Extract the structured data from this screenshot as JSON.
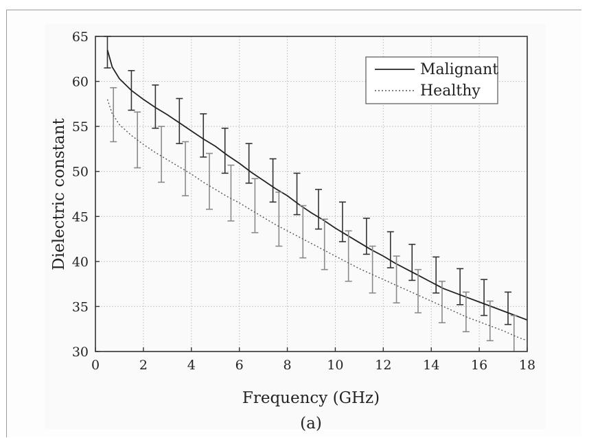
{
  "chart_data": {
    "type": "line",
    "xlabel": "Frequency (GHz)",
    "ylabel": "Dielectric constant",
    "caption": "(a)",
    "xlim": [
      0,
      18
    ],
    "ylim": [
      30,
      65
    ],
    "xticks": [
      0,
      2,
      4,
      6,
      8,
      10,
      12,
      14,
      16,
      18
    ],
    "yticks": [
      30,
      35,
      40,
      45,
      50,
      55,
      60,
      65
    ],
    "grid": true,
    "legend_position": "top-right",
    "series": [
      {
        "name": "Malignant",
        "style": "solid",
        "color": "#222222",
        "x": [
          0.5,
          0.7,
          1.0,
          1.5,
          2.0,
          2.5,
          3.0,
          3.5,
          4.0,
          4.5,
          5.0,
          5.5,
          6.0,
          6.5,
          7.0,
          7.5,
          8.0,
          8.5,
          9.0,
          9.5,
          10.0,
          10.5,
          11.0,
          11.5,
          12.0,
          12.5,
          13.0,
          13.5,
          14.0,
          14.5,
          15.0,
          15.5,
          16.0,
          16.5,
          17.0,
          17.5,
          18.0
        ],
        "y": [
          63.5,
          61.6,
          60.3,
          59.0,
          58.0,
          57.1,
          56.3,
          55.4,
          54.5,
          53.6,
          52.8,
          51.8,
          50.9,
          49.9,
          49.0,
          48.1,
          47.3,
          46.3,
          45.4,
          44.6,
          43.7,
          42.9,
          42.1,
          41.3,
          40.6,
          39.8,
          39.1,
          38.4,
          37.7,
          37.0,
          36.5,
          36.0,
          35.5,
          35.0,
          34.5,
          34.0,
          33.5
        ],
        "errorbars": {
          "x": [
            0.5,
            1.5,
            2.5,
            3.5,
            4.5,
            5.4,
            6.4,
            7.4,
            8.4,
            9.3,
            10.3,
            11.3,
            12.3,
            13.2,
            14.2,
            15.2,
            16.2,
            17.2
          ],
          "center": [
            63.5,
            59.0,
            57.2,
            55.6,
            54.0,
            52.3,
            50.9,
            49.0,
            47.5,
            45.8,
            44.4,
            42.8,
            41.3,
            39.9,
            38.5,
            37.2,
            36.0,
            34.8
          ],
          "error": [
            2.0,
            2.2,
            2.4,
            2.5,
            2.4,
            2.5,
            2.2,
            2.4,
            2.3,
            2.2,
            2.2,
            2.0,
            2.0,
            2.0,
            2.0,
            2.0,
            2.0,
            1.8
          ]
        }
      },
      {
        "name": "Healthy",
        "style": "dotted",
        "color": "#555555",
        "x": [
          0.5,
          0.7,
          1.0,
          1.5,
          2.0,
          2.5,
          3.0,
          3.5,
          4.0,
          4.5,
          5.0,
          5.5,
          6.0,
          6.5,
          7.0,
          7.5,
          8.0,
          8.5,
          9.0,
          9.5,
          10.0,
          10.5,
          11.0,
          11.5,
          12.0,
          12.5,
          13.0,
          13.5,
          14.0,
          14.5,
          15.0,
          15.5,
          16.0,
          16.5,
          17.0,
          17.5,
          18.0
        ],
        "y": [
          58.0,
          56.4,
          55.2,
          54.0,
          53.0,
          52.1,
          51.3,
          50.5,
          49.7,
          48.8,
          48.0,
          47.2,
          46.5,
          45.7,
          44.9,
          44.1,
          43.4,
          42.7,
          42.0,
          41.3,
          40.6,
          39.9,
          39.2,
          38.6,
          38.0,
          37.4,
          36.8,
          36.2,
          35.6,
          35.0,
          34.4,
          33.8,
          33.3,
          32.8,
          32.3,
          31.7,
          31.2
        ],
        "errorbars": {
          "x": [
            0.75,
            1.75,
            2.75,
            3.75,
            4.75,
            5.65,
            6.65,
            7.65,
            8.65,
            9.55,
            10.55,
            11.55,
            12.55,
            13.45,
            14.45,
            15.45,
            16.45,
            17.45
          ],
          "center": [
            56.3,
            53.5,
            51.9,
            50.3,
            48.9,
            47.6,
            46.2,
            44.7,
            43.3,
            41.9,
            40.6,
            39.1,
            38.0,
            36.7,
            35.5,
            34.4,
            33.4,
            32.0
          ],
          "error": [
            3.0,
            3.1,
            3.1,
            3.0,
            3.1,
            3.1,
            3.0,
            3.0,
            2.9,
            2.8,
            2.8,
            2.6,
            2.6,
            2.4,
            2.3,
            2.2,
            2.2,
            2.0
          ]
        }
      }
    ]
  }
}
